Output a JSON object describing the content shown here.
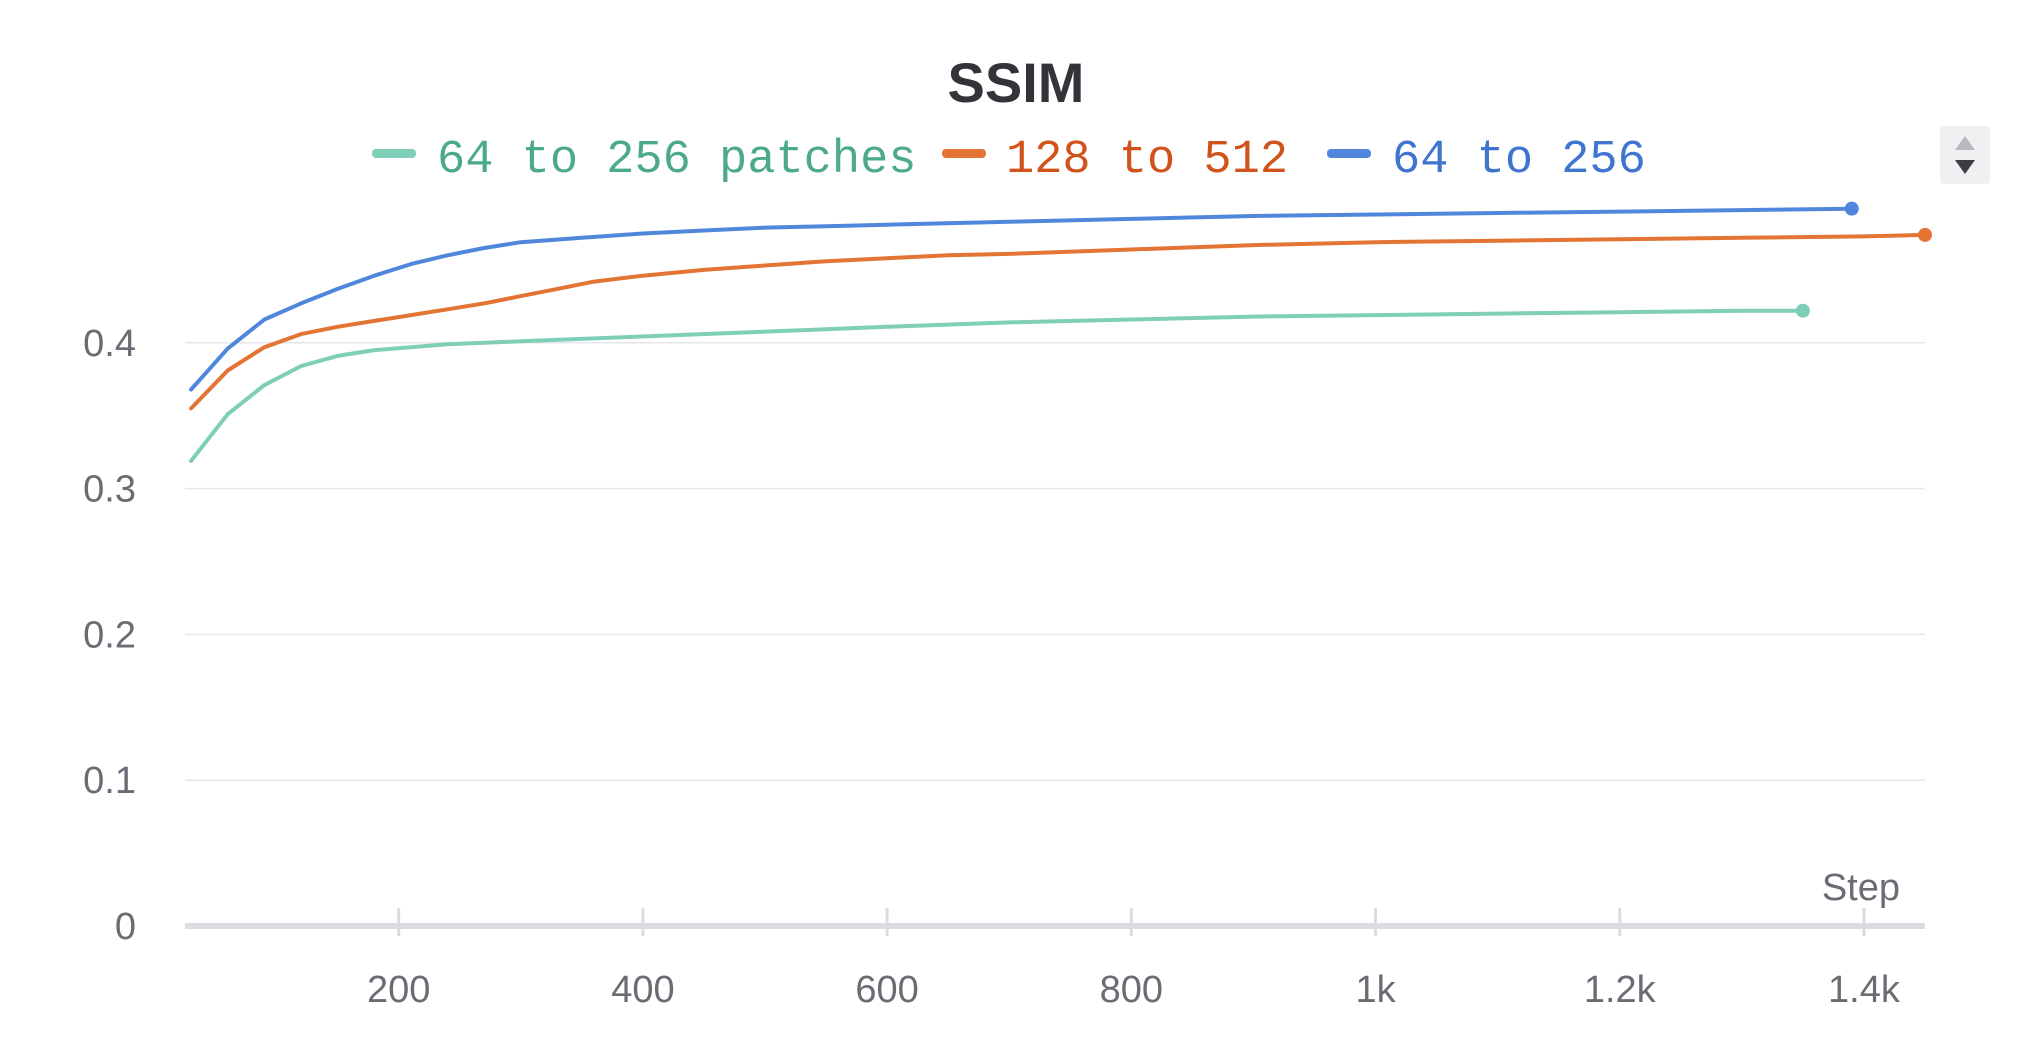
{
  "chart_data": {
    "type": "line",
    "title": "SSIM",
    "xlabel": "Step",
    "ylabel": "",
    "xlim": [
      25,
      1450
    ],
    "ylim": [
      0,
      0.5
    ],
    "x_ticks": [
      200,
      400,
      600,
      800,
      1000,
      1200,
      1400
    ],
    "x_tick_labels": [
      "200",
      "400",
      "600",
      "800",
      "1k",
      "1.2k",
      "1.4k"
    ],
    "y_ticks": [
      0,
      0.1,
      0.2,
      0.3,
      0.4
    ],
    "y_tick_labels": [
      "0",
      "0.1",
      "0.2",
      "0.3",
      "0.4"
    ],
    "grid": true,
    "legend_position": "top",
    "series": [
      {
        "name": "64 to 256 patches",
        "color": "#7fceb8",
        "legend_text_color": "#4da98e",
        "x": [
          30,
          60,
          90,
          120,
          150,
          180,
          210,
          240,
          270,
          300,
          360,
          420,
          480,
          540,
          600,
          700,
          800,
          900,
          1000,
          1100,
          1200,
          1300,
          1350
        ],
        "y": [
          0.319,
          0.351,
          0.371,
          0.384,
          0.391,
          0.395,
          0.397,
          0.399,
          0.4,
          0.401,
          0.403,
          0.405,
          0.407,
          0.409,
          0.411,
          0.414,
          0.416,
          0.418,
          0.419,
          0.42,
          0.421,
          0.422,
          0.422
        ]
      },
      {
        "name": "128 to 512",
        "color": "#e37433",
        "legend_text_color": "#d0531c",
        "x": [
          30,
          60,
          90,
          120,
          150,
          180,
          210,
          240,
          270,
          300,
          330,
          360,
          400,
          450,
          500,
          550,
          600,
          650,
          700,
          800,
          900,
          1000,
          1100,
          1200,
          1300,
          1400,
          1450
        ],
        "y": [
          0.355,
          0.381,
          0.397,
          0.406,
          0.411,
          0.415,
          0.419,
          0.423,
          0.427,
          0.432,
          0.437,
          0.442,
          0.446,
          0.45,
          0.453,
          0.456,
          0.458,
          0.46,
          0.461,
          0.464,
          0.467,
          0.469,
          0.47,
          0.471,
          0.472,
          0.473,
          0.474
        ]
      },
      {
        "name": "64 to 256",
        "color": "#5087dc",
        "legend_text_color": "#3f74cf",
        "x": [
          30,
          60,
          90,
          120,
          150,
          180,
          210,
          240,
          270,
          300,
          350,
          400,
          450,
          500,
          550,
          600,
          700,
          800,
          900,
          1000,
          1100,
          1200,
          1300,
          1390
        ],
        "y": [
          0.368,
          0.396,
          0.416,
          0.427,
          0.437,
          0.446,
          0.454,
          0.46,
          0.465,
          0.469,
          0.472,
          0.475,
          0.477,
          0.479,
          0.48,
          0.481,
          0.483,
          0.485,
          0.487,
          0.488,
          0.489,
          0.49,
          0.491,
          0.492
        ]
      }
    ]
  },
  "scroll_up_icon": "triangle-up-icon",
  "scroll_down_icon": "triangle-down-icon"
}
